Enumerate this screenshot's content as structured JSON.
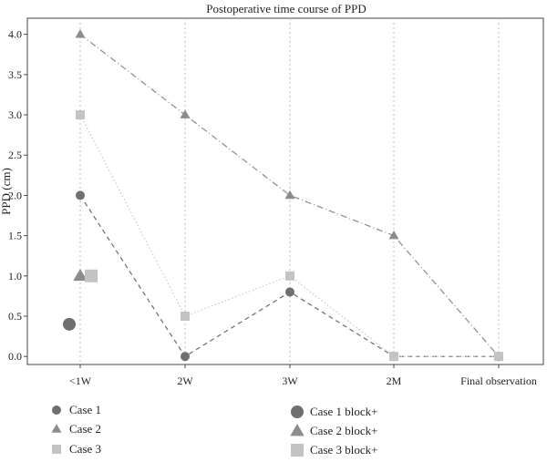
{
  "chart_data": {
    "type": "line",
    "title": "Postoperative time course of PPD",
    "xlabel": "",
    "ylabel": "PPD (cm)",
    "categories": [
      "<1W",
      "2W",
      "3W",
      "2M",
      "Final observation"
    ],
    "ylim": [
      -0.1,
      4.2
    ],
    "yticks": [
      "0.0",
      "0.5",
      "1.0",
      "1.5",
      "2.0",
      "2.5",
      "3.0",
      "3.5",
      "4.0"
    ],
    "grid": "vertical dotted",
    "legend_position": "bottom",
    "series": [
      {
        "name": "Case 1",
        "marker": "circle",
        "line": "dashed",
        "color": "#6f6f6f",
        "values": [
          2.0,
          0.0,
          0.8,
          0.0,
          0.0
        ]
      },
      {
        "name": "Case 2",
        "marker": "triangle",
        "line": "dashdot",
        "color": "#8c8c8c",
        "values": [
          4.0,
          3.0,
          2.0,
          1.5,
          0.0
        ]
      },
      {
        "name": "Case 3",
        "marker": "square",
        "line": "dotted",
        "color": "#c3c3c3",
        "values": [
          3.0,
          0.5,
          1.0,
          0.0,
          0.0
        ]
      }
    ],
    "block_points": [
      {
        "name": "Case 1 block+",
        "marker": "circle",
        "color": "#6f6f6f",
        "x": "<1W",
        "y": 0.4
      },
      {
        "name": "Case 2 block+",
        "marker": "triangle",
        "color": "#8c8c8c",
        "x": "<1W",
        "y": 1.0
      },
      {
        "name": "Case 3 block+",
        "marker": "square",
        "color": "#c3c3c3",
        "x": "<1W",
        "y": 1.0
      }
    ]
  }
}
